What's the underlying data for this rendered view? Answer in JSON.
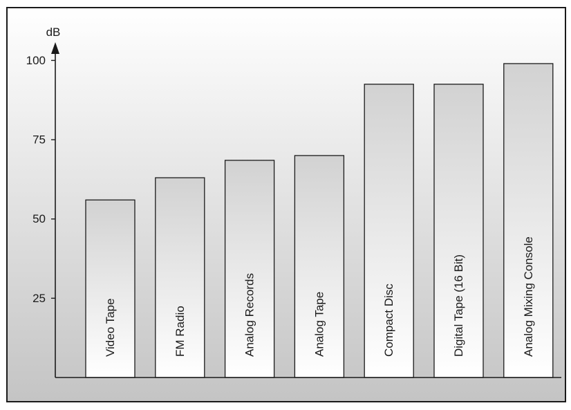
{
  "chart_data": {
    "type": "bar",
    "title": "",
    "xlabel": "",
    "ylabel": "dB",
    "categories": [
      "Video Tape",
      "FM Radio",
      "Analog Records",
      "Analog Tape",
      "Compact Disc",
      "Digital Tape (16 Bit)",
      "Analog Mixing Console"
    ],
    "values": [
      56,
      63,
      68.5,
      70,
      92.5,
      92.5,
      99
    ],
    "ylim": [
      0,
      110
    ],
    "yticks": [
      25,
      50,
      75,
      100
    ],
    "grid": false,
    "legend": "none"
  },
  "colors": {
    "background_top": "#ffffff",
    "background_bottom": "#c4c4c4",
    "border": "#1a1a1a",
    "bar_stroke": "#1a1a1a",
    "bar_fill_top": "#d2d2d2",
    "bar_fill_bottom": "#ffffff"
  }
}
